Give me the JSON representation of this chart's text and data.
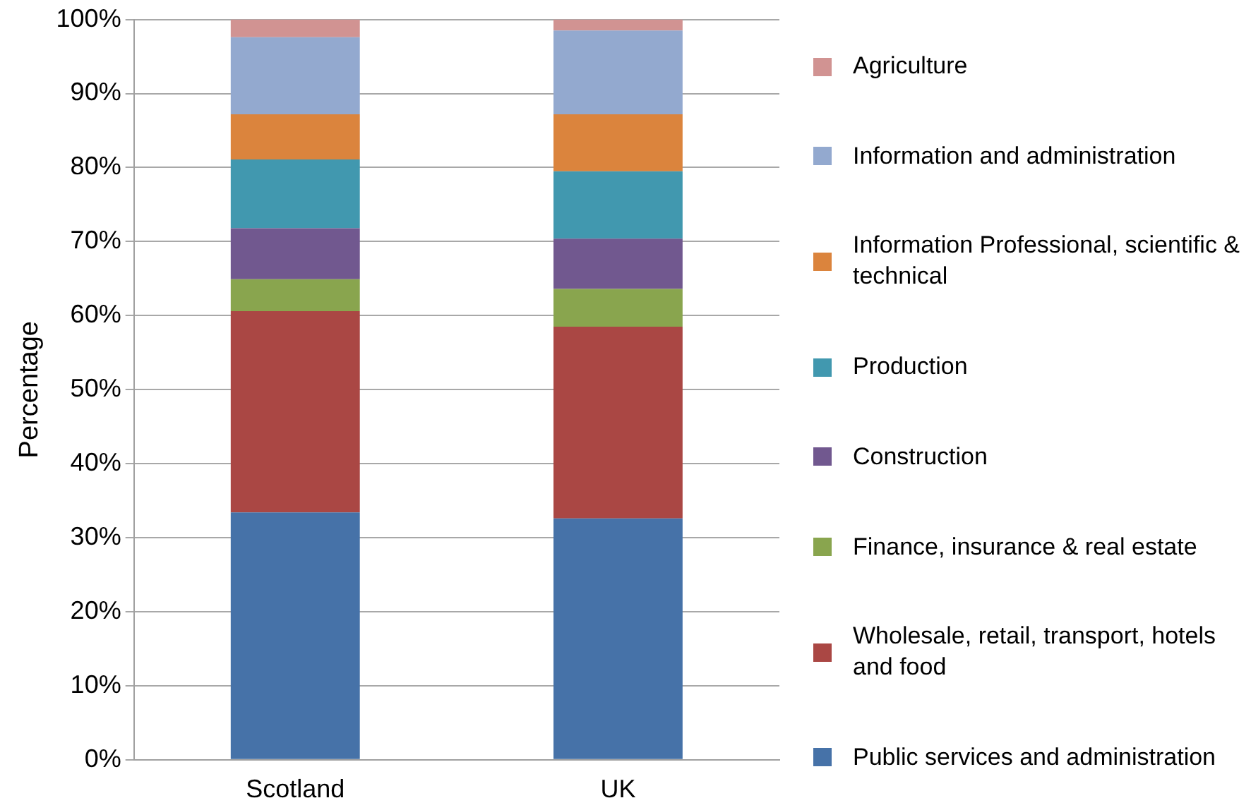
{
  "chart_data": {
    "type": "bar",
    "stacked": true,
    "ylabel": "Percentage",
    "categories": [
      "Scotland",
      "UK"
    ],
    "series": [
      {
        "name": "Public services and administration",
        "color": "#4672a8",
        "values": [
          33.4,
          32.6
        ]
      },
      {
        "name": "Wholesale, retail, transport, hotels and food",
        "color": "#aa4744",
        "values": [
          27.2,
          25.9
        ]
      },
      {
        "name": "Finance, insurance & real estate",
        "color": "#89a54e",
        "values": [
          4.3,
          5.1
        ]
      },
      {
        "name": "Construction",
        "color": "#71588f",
        "values": [
          6.9,
          6.8
        ]
      },
      {
        "name": "Production",
        "color": "#4198af",
        "values": [
          9.3,
          9.1
        ]
      },
      {
        "name": "Information Professional, scientific & technical",
        "color": "#db843d",
        "values": [
          6.1,
          7.7
        ]
      },
      {
        "name": "Information and administration",
        "color": "#93a9cf",
        "values": [
          10.4,
          11.3
        ]
      },
      {
        "name": "Agriculture",
        "color": "#d19392",
        "values": [
          2.4,
          1.5
        ]
      }
    ],
    "ylim": [
      0,
      100
    ],
    "yticks": [
      {
        "value": 0,
        "label": "0%"
      },
      {
        "value": 10,
        "label": "10%"
      },
      {
        "value": 20,
        "label": "20%"
      },
      {
        "value": 30,
        "label": "30%"
      },
      {
        "value": 40,
        "label": "40%"
      },
      {
        "value": 50,
        "label": "50%"
      },
      {
        "value": 60,
        "label": "60%"
      },
      {
        "value": 70,
        "label": "70%"
      },
      {
        "value": 80,
        "label": "80%"
      },
      {
        "value": 90,
        "label": "90%"
      },
      {
        "value": 100,
        "label": "100%"
      }
    ],
    "grid": "y",
    "legend": "right"
  }
}
